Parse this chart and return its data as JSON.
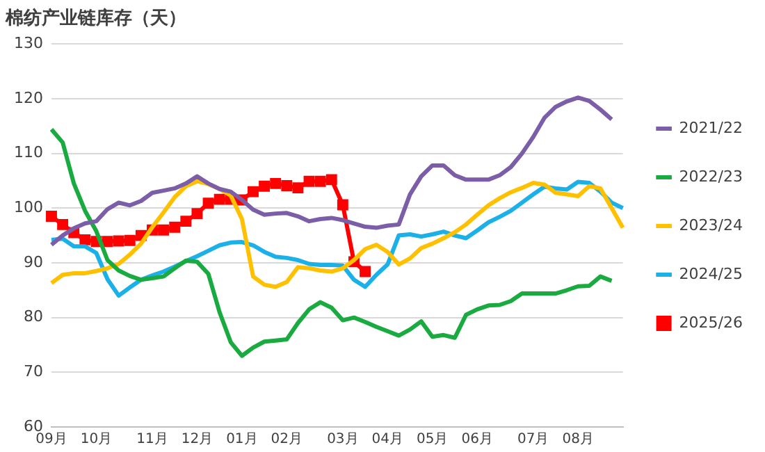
{
  "chart_data": {
    "type": "line",
    "title": "棉纺产业链库存（天）",
    "categories": [
      "09月",
      null,
      null,
      null,
      "10月",
      null,
      null,
      null,
      null,
      "11月",
      null,
      null,
      null,
      "12月",
      null,
      null,
      null,
      "01月",
      null,
      null,
      null,
      "02月",
      null,
      null,
      null,
      null,
      "03月",
      null,
      null,
      null,
      "04月",
      null,
      null,
      null,
      "05月",
      null,
      null,
      null,
      "06月",
      null,
      null,
      null,
      null,
      "07月",
      null,
      null,
      null,
      "08月",
      null,
      null,
      null,
      null
    ],
    "ylim": [
      60,
      130
    ],
    "yticks": [
      60,
      70,
      80,
      90,
      100,
      110,
      120,
      130
    ],
    "grid": "y",
    "legend": "right",
    "marker": "none",
    "line_style": "solid",
    "series": [
      {
        "name": "2021/22",
        "color": "#7b5ea7",
        "values": [
          93.3,
          95,
          96.3,
          97.2,
          97.6,
          99.8,
          101,
          100.5,
          101.3,
          102.8,
          103.2,
          103.6,
          104.5,
          105.8,
          104.5,
          103.5,
          103,
          101.5,
          99.7,
          98.8,
          99,
          99.1,
          98.5,
          97.6,
          98,
          98.2,
          97.8,
          97.2,
          96.6,
          96.4,
          96.8,
          97,
          102.5,
          105.8,
          107.8,
          107.8,
          106,
          105.2,
          105.2,
          105.2,
          106,
          107.5,
          110,
          113,
          116.5,
          118.5,
          119.5,
          120.2,
          119.6,
          118,
          116.2,
          null
        ]
      },
      {
        "name": "2022/23",
        "color": "#1aab40",
        "values": [
          114.4,
          112,
          104.5,
          99.5,
          95.8,
          90.5,
          88.6,
          87.6,
          86.9,
          87.2,
          87.5,
          89,
          90.4,
          90.2,
          88,
          81,
          75.5,
          73,
          74.5,
          75.6,
          75.8,
          76,
          79,
          81.5,
          82.8,
          81.8,
          79.5,
          80,
          79.2,
          78.3,
          77.5,
          76.7,
          77.8,
          79.3,
          76.5,
          76.8,
          76.3,
          80.5,
          81.5,
          82.2,
          82.3,
          83,
          84.4,
          84.4,
          84.4,
          84.4,
          85,
          85.7,
          85.8,
          87.5,
          86.7,
          null
        ]
      },
      {
        "name": "2023/24",
        "color": "#ffc000",
        "values": [
          86.3,
          87.8,
          88.1,
          88.1,
          88.5,
          89,
          89.8,
          91.5,
          93.5,
          96.5,
          99.2,
          102,
          104,
          104.9,
          104.4,
          103.5,
          102.3,
          98,
          87.5,
          86,
          85.6,
          86.5,
          89.2,
          89,
          88.6,
          88.4,
          89,
          90.5,
          92.5,
          93.3,
          92,
          89.7,
          90.8,
          92.7,
          93.5,
          94.5,
          95.6,
          97,
          98.8,
          100.5,
          101.8,
          102.9,
          103.7,
          104.6,
          104.3,
          102.8,
          102.5,
          102.2,
          104,
          103.6,
          100,
          96.4
        ]
      },
      {
        "name": "2024/25",
        "color": "#1cb0e8",
        "values": [
          94.2,
          94.4,
          93,
          93,
          91.8,
          87,
          84,
          85.5,
          86.9,
          87.7,
          88.4,
          89.3,
          90.3,
          91.2,
          92.2,
          93.2,
          93.7,
          93.8,
          93.2,
          92,
          91.1,
          90.9,
          90.5,
          89.8,
          89.6,
          89.6,
          89.5,
          86.9,
          85.6,
          87.8,
          89.7,
          95,
          95.2,
          94.8,
          95.2,
          95.7,
          95,
          94.5,
          95.9,
          97.4,
          98.4,
          99.5,
          101,
          102.5,
          103.9,
          103.6,
          103.4,
          104.8,
          104.6,
          103,
          101,
          100
        ]
      },
      {
        "name": "2025/26",
        "color": "#ff0000",
        "marker": "square",
        "values": [
          98.5,
          97,
          95.5,
          94.2,
          93.9,
          93.9,
          94,
          94.1,
          95,
          96,
          96,
          96.5,
          97.6,
          99,
          100.9,
          101.6,
          101.6,
          101.5,
          103,
          104,
          104.5,
          104.1,
          103.7,
          104.9,
          104.9,
          105.2,
          100.6,
          90.2,
          88.4,
          null,
          null,
          null,
          null,
          null,
          null,
          null,
          null,
          null,
          null,
          null,
          null,
          null,
          null,
          null,
          null,
          null,
          null,
          null,
          null,
          null,
          null,
          null
        ]
      }
    ]
  }
}
